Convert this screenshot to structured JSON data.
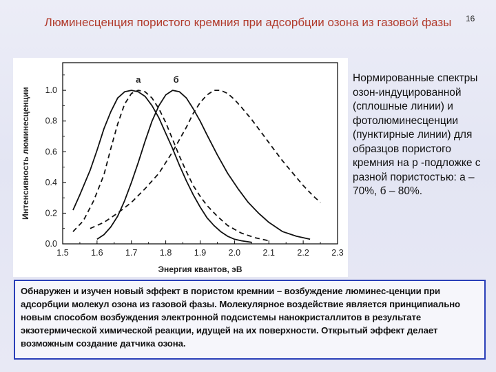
{
  "page": {
    "title": "Люминесценция пористого кремния при адсорбции озона из газовой фазы",
    "page_number": "16",
    "side_text": "Нормированные спектры озон-индуцированной (сплошные линии) и фотолюминесценции (пунктирные линии) для образцов пористого кремния на p -подложке с разной пористостью: а – 70%, б – 80%.",
    "description": "Обнаружен и изучен новый эффект в пористом кремнии – возбуждение люминес-ценции при адсорбции молекул озона из газовой фазы. Молекулярное воздействие является принципиально новым способом возбуждения электронной подсистемы нанокристаллитов в результате экзотермической химической реакции, идущей на их поверхности. Открытый эффект делает возможным создание датчика озона.",
    "colors": {
      "title": "#b13b2c",
      "border": "#2a3fb8",
      "background": "#e6e7f4"
    }
  },
  "chart_data": {
    "type": "line",
    "xlabel": "Энергия квантов, эВ",
    "ylabel": "Интенсивность люминесценции",
    "xlim": [
      1.5,
      2.3
    ],
    "ylim": [
      0.0,
      1.0
    ],
    "x_ticks": [
      "1.5",
      "1.6",
      "1.7",
      "1.8",
      "1.9",
      "2.0",
      "2.1",
      "2.2",
      "2.3"
    ],
    "y_ticks": [
      "0.0",
      "0.2",
      "0.4",
      "0.6",
      "0.8",
      "1.0"
    ],
    "grid": false,
    "annotations": [
      {
        "text": "а",
        "x": 1.72,
        "y": 1.05
      },
      {
        "text": "б",
        "x": 1.83,
        "y": 1.05
      }
    ],
    "series": [
      {
        "style": "solid",
        "label": "а",
        "points": [
          [
            1.53,
            0.22
          ],
          [
            1.55,
            0.32
          ],
          [
            1.58,
            0.48
          ],
          [
            1.6,
            0.61
          ],
          [
            1.62,
            0.75
          ],
          [
            1.64,
            0.86
          ],
          [
            1.66,
            0.95
          ],
          [
            1.68,
            0.99
          ],
          [
            1.7,
            1.0
          ],
          [
            1.72,
            0.99
          ],
          [
            1.74,
            0.96
          ],
          [
            1.76,
            0.9
          ],
          [
            1.78,
            0.82
          ],
          [
            1.8,
            0.72
          ],
          [
            1.82,
            0.62
          ],
          [
            1.84,
            0.51
          ],
          [
            1.86,
            0.41
          ],
          [
            1.88,
            0.32
          ],
          [
            1.9,
            0.24
          ],
          [
            1.92,
            0.17
          ],
          [
            1.94,
            0.12
          ],
          [
            1.96,
            0.08
          ],
          [
            1.98,
            0.05
          ],
          [
            2.0,
            0.03
          ],
          [
            2.02,
            0.02
          ],
          [
            2.05,
            0.01
          ]
        ]
      },
      {
        "style": "dashed",
        "label": "а",
        "points": [
          [
            1.53,
            0.08
          ],
          [
            1.56,
            0.15
          ],
          [
            1.59,
            0.28
          ],
          [
            1.62,
            0.45
          ],
          [
            1.64,
            0.62
          ],
          [
            1.66,
            0.78
          ],
          [
            1.68,
            0.91
          ],
          [
            1.7,
            0.98
          ],
          [
            1.72,
            1.0
          ],
          [
            1.74,
            0.99
          ],
          [
            1.76,
            0.95
          ],
          [
            1.78,
            0.88
          ],
          [
            1.8,
            0.79
          ],
          [
            1.82,
            0.68
          ],
          [
            1.84,
            0.57
          ],
          [
            1.86,
            0.47
          ],
          [
            1.88,
            0.38
          ],
          [
            1.9,
            0.31
          ],
          [
            1.92,
            0.25
          ],
          [
            1.95,
            0.18
          ],
          [
            1.98,
            0.12
          ],
          [
            2.02,
            0.07
          ],
          [
            2.06,
            0.04
          ],
          [
            2.1,
            0.02
          ]
        ]
      },
      {
        "style": "solid",
        "label": "б",
        "points": [
          [
            1.6,
            0.03
          ],
          [
            1.62,
            0.06
          ],
          [
            1.64,
            0.11
          ],
          [
            1.66,
            0.18
          ],
          [
            1.68,
            0.28
          ],
          [
            1.7,
            0.4
          ],
          [
            1.72,
            0.53
          ],
          [
            1.74,
            0.67
          ],
          [
            1.76,
            0.8
          ],
          [
            1.78,
            0.9
          ],
          [
            1.8,
            0.97
          ],
          [
            1.82,
            1.0
          ],
          [
            1.84,
            0.99
          ],
          [
            1.86,
            0.95
          ],
          [
            1.88,
            0.88
          ],
          [
            1.9,
            0.8
          ],
          [
            1.92,
            0.71
          ],
          [
            1.95,
            0.58
          ],
          [
            1.98,
            0.46
          ],
          [
            2.01,
            0.36
          ],
          [
            2.04,
            0.27
          ],
          [
            2.07,
            0.2
          ],
          [
            2.1,
            0.14
          ],
          [
            2.14,
            0.08
          ],
          [
            2.18,
            0.05
          ],
          [
            2.22,
            0.03
          ]
        ]
      },
      {
        "style": "dashed",
        "label": "б",
        "points": [
          [
            1.58,
            0.1
          ],
          [
            1.62,
            0.14
          ],
          [
            1.66,
            0.2
          ],
          [
            1.7,
            0.27
          ],
          [
            1.74,
            0.36
          ],
          [
            1.78,
            0.46
          ],
          [
            1.82,
            0.6
          ],
          [
            1.86,
            0.76
          ],
          [
            1.88,
            0.85
          ],
          [
            1.9,
            0.92
          ],
          [
            1.92,
            0.97
          ],
          [
            1.94,
            1.0
          ],
          [
            1.96,
            1.0
          ],
          [
            1.98,
            0.98
          ],
          [
            2.0,
            0.94
          ],
          [
            2.02,
            0.89
          ],
          [
            2.05,
            0.81
          ],
          [
            2.08,
            0.72
          ],
          [
            2.11,
            0.63
          ],
          [
            2.14,
            0.54
          ],
          [
            2.17,
            0.46
          ],
          [
            2.2,
            0.38
          ],
          [
            2.23,
            0.31
          ],
          [
            2.25,
            0.27
          ]
        ]
      }
    ]
  }
}
